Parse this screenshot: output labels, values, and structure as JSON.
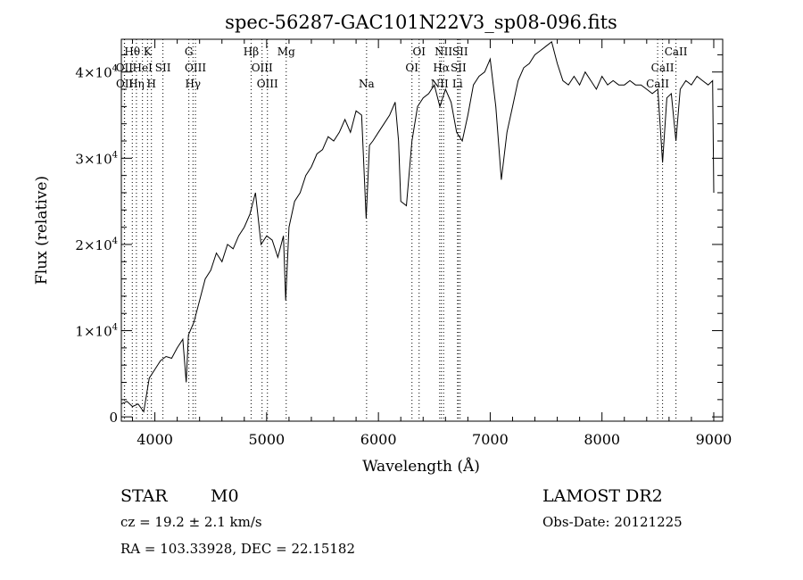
{
  "chart_data": {
    "type": "line",
    "title": "spec-56287-GAC101N22V3_sp08-096.fits",
    "xlabel": "Wavelength (Å)",
    "ylabel": "Flux (relative)",
    "xlim": [
      3700,
      9080
    ],
    "ylim": [
      -500,
      43800
    ],
    "grid": false,
    "x_ticks": [
      4000,
      5000,
      6000,
      7000,
      8000,
      9000
    ],
    "x_tick_labels": [
      "4000",
      "5000",
      "6000",
      "7000",
      "8000",
      "9000"
    ],
    "y_ticks": [
      0,
      10000,
      20000,
      30000,
      40000
    ],
    "y_tick_labels": [
      {
        "base": "0",
        "exp": ""
      },
      {
        "base": "1×10",
        "exp": "4"
      },
      {
        "base": "2×10",
        "exp": "4"
      },
      {
        "base": "3×10",
        "exp": "4"
      },
      {
        "base": "4×10",
        "exp": "4"
      }
    ],
    "series": [
      {
        "name": "spectrum",
        "color": "#000000",
        "x": [
          3700,
          3750,
          3800,
          3850,
          3900,
          3950,
          4000,
          4050,
          4100,
          4150,
          4200,
          4250,
          4280,
          4300,
          4350,
          4400,
          4450,
          4500,
          4550,
          4600,
          4650,
          4700,
          4750,
          4800,
          4850,
          4900,
          4950,
          5000,
          5050,
          5100,
          5150,
          5170,
          5200,
          5250,
          5300,
          5350,
          5400,
          5450,
          5500,
          5550,
          5600,
          5650,
          5700,
          5750,
          5800,
          5850,
          5890,
          5920,
          5950,
          6000,
          6050,
          6100,
          6150,
          6180,
          6200,
          6250,
          6300,
          6350,
          6400,
          6450,
          6500,
          6550,
          6600,
          6650,
          6700,
          6750,
          6800,
          6850,
          6900,
          6950,
          7000,
          7050,
          7100,
          7150,
          7200,
          7250,
          7300,
          7350,
          7400,
          7450,
          7500,
          7550,
          7600,
          7650,
          7700,
          7750,
          7800,
          7850,
          7900,
          7950,
          8000,
          8050,
          8100,
          8150,
          8200,
          8250,
          8300,
          8350,
          8400,
          8450,
          8500,
          8542,
          8580,
          8620,
          8662,
          8700,
          8750,
          8800,
          8850,
          8900,
          8950,
          8990,
          9000
        ],
        "y": [
          1500,
          1800,
          1200,
          1500,
          600,
          4500,
          5500,
          6500,
          7000,
          6800,
          8000,
          9000,
          4000,
          9500,
          11000,
          13500,
          16000,
          17000,
          19000,
          18000,
          20000,
          19500,
          21000,
          22000,
          23500,
          26000,
          20000,
          21000,
          20500,
          18500,
          21000,
          13500,
          22000,
          25000,
          26000,
          28000,
          29000,
          30500,
          31000,
          32500,
          32000,
          33000,
          34500,
          33000,
          35500,
          35000,
          23000,
          31500,
          32000,
          33000,
          34000,
          35000,
          36500,
          32000,
          25000,
          24500,
          32000,
          36000,
          37000,
          37500,
          38500,
          36000,
          38000,
          36500,
          33000,
          32000,
          35000,
          38500,
          39500,
          40000,
          41500,
          36000,
          27500,
          33000,
          36000,
          39000,
          40500,
          41000,
          42000,
          42500,
          43000,
          43500,
          41000,
          39000,
          38500,
          39500,
          38500,
          40000,
          39000,
          38000,
          39500,
          38500,
          39000,
          38500,
          38500,
          39000,
          38500,
          38500,
          38000,
          37500,
          38000,
          29500,
          37000,
          37500,
          32000,
          38000,
          39000,
          38500,
          39500,
          39000,
          38500,
          39000,
          26000
        ]
      }
    ],
    "line_markers": [
      {
        "label": "Hθ",
        "wavelength": 3798,
        "row": 1
      },
      {
        "label": "K",
        "wavelength": 3934,
        "row": 1
      },
      {
        "label": "G",
        "wavelength": 4304,
        "row": 1
      },
      {
        "label": "Hβ",
        "wavelength": 4861,
        "row": 1
      },
      {
        "label": "Mg",
        "wavelength": 5175,
        "row": 1
      },
      {
        "label": "OI",
        "wavelength": 6364,
        "row": 1
      },
      {
        "label": "NII",
        "wavelength": 6583,
        "row": 1
      },
      {
        "label": "SII",
        "wavelength": 6731,
        "row": 1
      },
      {
        "label": "CaII",
        "wavelength": 8662,
        "row": 1
      },
      {
        "label": "OII",
        "wavelength": 3727,
        "row": 2
      },
      {
        "label": "HeI",
        "wavelength": 3889,
        "row": 2
      },
      {
        "label": "SII",
        "wavelength": 4072,
        "row": 2
      },
      {
        "label": "OIII",
        "wavelength": 4363,
        "row": 2
      },
      {
        "label": "OIII",
        "wavelength": 4959,
        "row": 2
      },
      {
        "label": "OI",
        "wavelength": 6300,
        "row": 2
      },
      {
        "label": "Hα",
        "wavelength": 6563,
        "row": 2
      },
      {
        "label": "SII",
        "wavelength": 6716,
        "row": 2
      },
      {
        "label": "CaII",
        "wavelength": 8542,
        "row": 2
      },
      {
        "label": "OII",
        "wavelength": 3729,
        "row": 3
      },
      {
        "label": "Hη",
        "wavelength": 3835,
        "row": 3
      },
      {
        "label": "H",
        "wavelength": 3969,
        "row": 3
      },
      {
        "label": "Hγ",
        "wavelength": 4341,
        "row": 3
      },
      {
        "label": "OIII",
        "wavelength": 5007,
        "row": 3
      },
      {
        "label": "Na",
        "wavelength": 5894,
        "row": 3
      },
      {
        "label": "NII",
        "wavelength": 6548,
        "row": 3
      },
      {
        "label": "Li",
        "wavelength": 6708,
        "row": 3
      },
      {
        "label": "CaII",
        "wavelength": 8498,
        "row": 3
      }
    ]
  },
  "info": {
    "class": "STAR",
    "subclass": "M0",
    "cz": "cz = 19.2 ± 2.1 km/s",
    "coords": "RA = 103.33928, DEC =  22.15182",
    "survey": "LAMOST DR2",
    "obs_date": "Obs-Date: 20121225"
  }
}
